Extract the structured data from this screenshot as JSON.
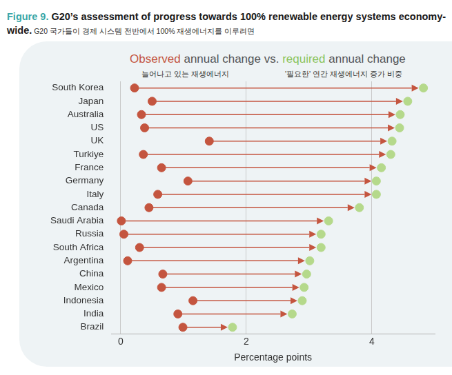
{
  "chart_data": {
    "type": "dumbbell",
    "orientation": "horizontal",
    "title": "Figure 9. G20’s assessment of progress towards 100% renewable energy systems economy-wide.",
    "subtitle": "Observed annual change vs. required annual change",
    "annotations": [
      "G20 국가들이 경제 시스템 전반에서 100% 재생에너지를  이루려면",
      "늘어나고 있는 재생에너지",
      "'필요한' 연간 재생에너지 증가 비중"
    ],
    "xlabel": "Percentage points",
    "categories": [
      "South Korea",
      "Japan",
      "Australia",
      "US",
      "UK",
      "Turkiye",
      "France",
      "Germany",
      "Italy",
      "Canada",
      "Saudi Arabia",
      "Russia",
      "South Africa",
      "Argentina",
      "China",
      "Mexico",
      "Indonesia",
      "India",
      "Brazil"
    ],
    "series": [
      {
        "name": "Observed",
        "color": "#c4553f",
        "marker": "circle",
        "values": [
          0.22,
          0.5,
          0.33,
          0.38,
          1.41,
          0.36,
          0.65,
          1.07,
          0.59,
          0.45,
          0.01,
          0.05,
          0.3,
          0.11,
          0.67,
          0.65,
          1.15,
          0.91,
          0.99
        ]
      },
      {
        "name": "required",
        "color": "#b5d98b",
        "marker": "circle",
        "values": [
          4.82,
          4.57,
          4.45,
          4.44,
          4.32,
          4.3,
          4.15,
          4.07,
          4.07,
          3.8,
          3.31,
          3.19,
          3.19,
          3.01,
          2.96,
          2.92,
          2.89,
          2.73,
          1.78
        ]
      }
    ],
    "xlim": [
      -0.15,
      5
    ],
    "xticks": [
      0,
      2,
      4
    ],
    "grid": true
  }
}
